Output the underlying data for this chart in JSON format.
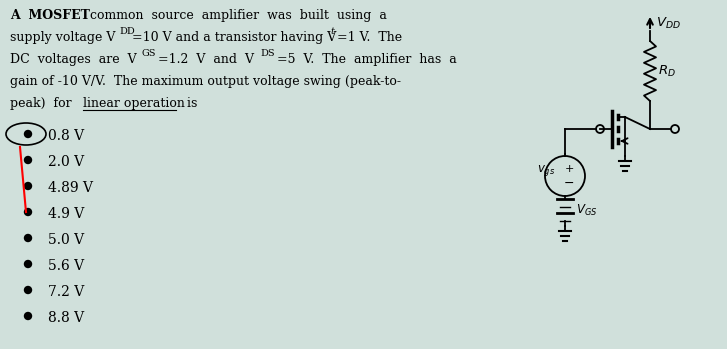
{
  "background_color": "#d0e0db",
  "options": [
    "0.8 V",
    "2.0 V",
    "4.89 V",
    "4.9 V",
    "5.0 V",
    "5.6 V",
    "7.2 V",
    "8.8 V"
  ],
  "font_size_text": 9.0,
  "font_size_options": 10.0,
  "font_size_circuit": 9.5
}
